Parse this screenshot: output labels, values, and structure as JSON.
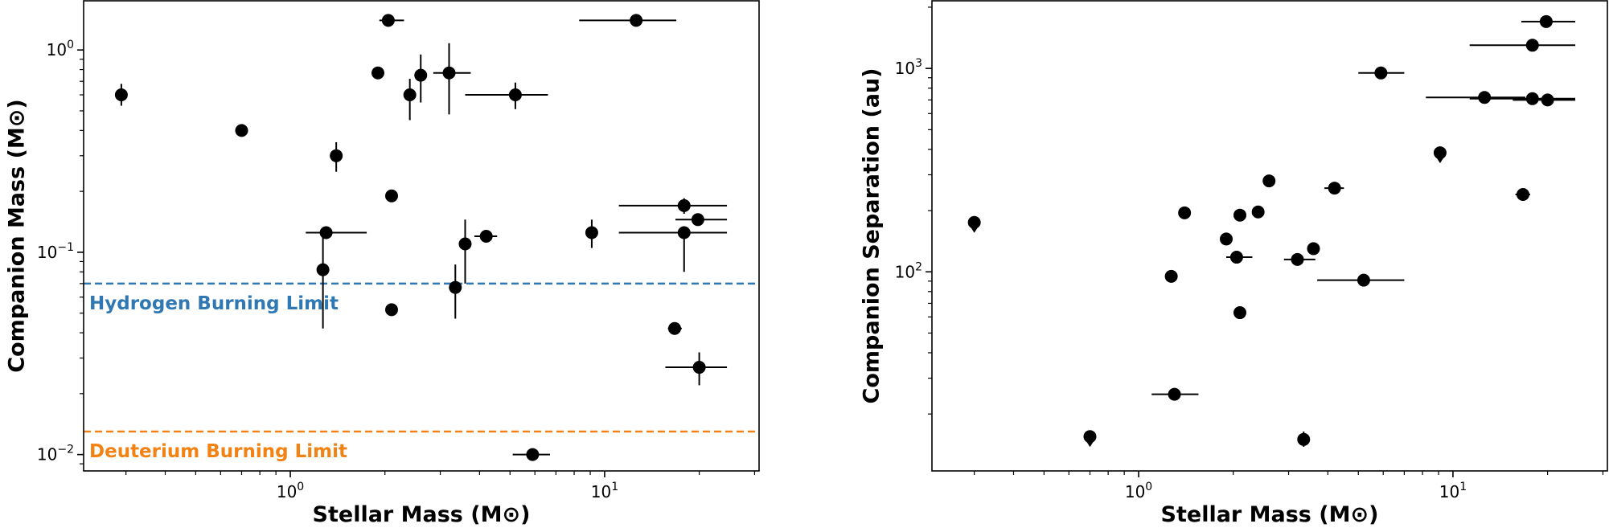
{
  "chart_data": [
    {
      "type": "scatter",
      "xlabel": "Stellar Mass (M⊙)",
      "ylabel": "Companion Mass (M⊙)",
      "xscale": "log",
      "yscale": "log",
      "xlim": [
        0.22,
        31
      ],
      "ylim": [
        0.0083,
        1.75
      ],
      "x_ticks": [
        {
          "base": "10",
          "exp": "0"
        },
        {
          "base": "10",
          "exp": "1"
        }
      ],
      "y_ticks": [
        {
          "base": "10",
          "exp": "−2"
        },
        {
          "base": "10",
          "exp": "−1"
        },
        {
          "base": "10",
          "exp": "0"
        }
      ],
      "hlines": [
        {
          "y": 0.07,
          "label": "Hydrogen Burning Limit",
          "color": "#2f78b4"
        },
        {
          "y": 0.013,
          "label": "Deuterium Burning Limit",
          "color": "#f28214"
        }
      ],
      "points": [
        {
          "x": 0.29,
          "y": 0.6,
          "yerr": [
            0.53,
            0.68
          ]
        },
        {
          "x": 0.7,
          "y": 0.4
        },
        {
          "x": 1.27,
          "y": 0.082,
          "yerr": [
            0.042,
            0.125
          ]
        },
        {
          "x": 1.3,
          "y": 0.125,
          "xerr": [
            1.12,
            1.75
          ]
        },
        {
          "x": 1.4,
          "y": 0.3,
          "yerr": [
            0.25,
            0.35
          ]
        },
        {
          "x": 1.9,
          "y": 0.77
        },
        {
          "x": 2.05,
          "y": 1.4,
          "xerr": [
            1.92,
            2.3
          ]
        },
        {
          "x": 2.1,
          "y": 0.19
        },
        {
          "x": 2.1,
          "y": 0.052
        },
        {
          "x": 2.4,
          "y": 0.6,
          "yerr": [
            0.45,
            0.72
          ]
        },
        {
          "x": 2.6,
          "y": 0.75,
          "yerr": [
            0.55,
            0.95
          ]
        },
        {
          "x": 3.2,
          "y": 0.77,
          "xerr": [
            2.85,
            3.75
          ],
          "yerr": [
            0.48,
            1.08
          ]
        },
        {
          "x": 3.35,
          "y": 0.067,
          "yerr": [
            0.047,
            0.087
          ]
        },
        {
          "x": 3.6,
          "y": 0.11,
          "yerr": [
            0.07,
            0.145
          ]
        },
        {
          "x": 4.2,
          "y": 0.12,
          "xerr": [
            3.85,
            4.55
          ]
        },
        {
          "x": 5.2,
          "y": 0.6,
          "xerr": [
            3.6,
            6.6
          ],
          "yerr": [
            0.51,
            0.69
          ]
        },
        {
          "x": 5.9,
          "y": 0.01,
          "xerr": [
            5.1,
            6.7
          ]
        },
        {
          "x": 9.1,
          "y": 0.125,
          "yerr": [
            0.105,
            0.145
          ]
        },
        {
          "x": 12.6,
          "y": 1.4,
          "xerr": [
            8.3,
            16.9
          ]
        },
        {
          "x": 16.7,
          "y": 0.042,
          "xerr": [
            15.9,
            17.6
          ]
        },
        {
          "x": 17.9,
          "y": 0.17,
          "xerr": [
            11.1,
            24.5
          ],
          "yerr": [
            0.155,
            0.185
          ]
        },
        {
          "x": 17.9,
          "y": 0.125,
          "xerr": [
            11.1,
            24.5
          ],
          "yerr": [
            0.08,
            0.13
          ]
        },
        {
          "x": 19.8,
          "y": 0.145,
          "xerr": [
            16.8,
            24.5
          ]
        },
        {
          "x": 20.0,
          "y": 0.027,
          "xerr": [
            15.6,
            24.5
          ],
          "yerr": [
            0.022,
            0.032
          ]
        }
      ]
    },
    {
      "type": "scatter",
      "xlabel": "Stellar Mass (M⊙)",
      "ylabel": "Companion Separation (au)",
      "xscale": "log",
      "yscale": "log",
      "xlim": [
        0.22,
        31
      ],
      "ylim": [
        10.5,
        2150
      ],
      "x_ticks": [
        {
          "base": "10",
          "exp": "0"
        },
        {
          "base": "10",
          "exp": "1"
        }
      ],
      "y_ticks": [
        {
          "base": "10",
          "exp": "2"
        },
        {
          "base": "10",
          "exp": "3"
        }
      ],
      "points": [
        {
          "x": 0.3,
          "y": 175,
          "upper_limit": true
        },
        {
          "x": 0.7,
          "y": 15.5,
          "upper_limit": true
        },
        {
          "x": 1.27,
          "y": 95
        },
        {
          "x": 1.3,
          "y": 25,
          "xerr": [
            1.1,
            1.55
          ]
        },
        {
          "x": 1.4,
          "y": 195
        },
        {
          "x": 1.9,
          "y": 145
        },
        {
          "x": 2.05,
          "y": 118,
          "xerr": [
            1.9,
            2.3
          ]
        },
        {
          "x": 2.1,
          "y": 190
        },
        {
          "x": 2.1,
          "y": 63
        },
        {
          "x": 2.4,
          "y": 197
        },
        {
          "x": 2.6,
          "y": 280
        },
        {
          "x": 3.2,
          "y": 115,
          "xerr": [
            2.9,
            3.65
          ]
        },
        {
          "x": 3.35,
          "y": 15,
          "yerr": [
            13.8,
            16.4
          ]
        },
        {
          "x": 3.6,
          "y": 130
        },
        {
          "x": 4.2,
          "y": 258,
          "xerr": [
            3.9,
            4.5
          ]
        },
        {
          "x": 5.2,
          "y": 91,
          "xerr": [
            3.7,
            7.0
          ]
        },
        {
          "x": 5.9,
          "y": 950,
          "xerr": [
            5.0,
            7.0
          ]
        },
        {
          "x": 9.1,
          "y": 385,
          "upper_limit": true
        },
        {
          "x": 12.6,
          "y": 720,
          "xerr": [
            8.2,
            17.0
          ]
        },
        {
          "x": 16.7,
          "y": 240,
          "xerr": [
            15.8,
            17.6
          ]
        },
        {
          "x": 17.9,
          "y": 1300,
          "xerr": [
            11.3,
            24.5
          ]
        },
        {
          "x": 17.9,
          "y": 710,
          "xerr": [
            11.3,
            24.5
          ]
        },
        {
          "x": 19.8,
          "y": 1700,
          "xerr": [
            16.5,
            24.5
          ]
        },
        {
          "x": 20.0,
          "y": 700,
          "xerr": [
            15.5,
            24.5
          ]
        }
      ]
    }
  ]
}
